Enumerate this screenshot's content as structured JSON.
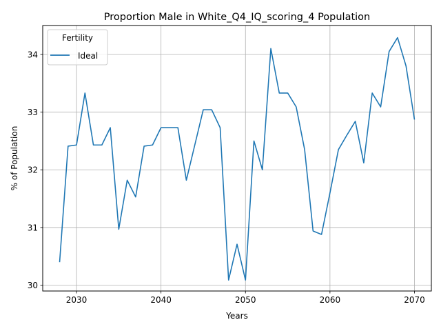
{
  "chart_data": {
    "type": "line",
    "title": "Proportion Male in White_Q4_IQ_scoring_4 Population",
    "xlabel": "Years",
    "ylabel": "% of Population",
    "xlim": [
      2026,
      2072
    ],
    "ylim": [
      29.9,
      34.5
    ],
    "xticks": [
      2030,
      2040,
      2050,
      2060,
      2070
    ],
    "yticks": [
      30,
      31,
      32,
      33,
      34
    ],
    "grid": true,
    "legend": {
      "title": "Fertility",
      "placement": "top-left"
    },
    "series": [
      {
        "name": "Ideal",
        "color": "#1f77b4",
        "x": [
          2028,
          2029,
          2030,
          2031,
          2032,
          2033,
          2034,
          2035,
          2036,
          2037,
          2038,
          2039,
          2040,
          2041,
          2042,
          2043,
          2044,
          2045,
          2046,
          2047,
          2048,
          2049,
          2050,
          2051,
          2052,
          2053,
          2054,
          2055,
          2056,
          2057,
          2058,
          2059,
          2060,
          2061,
          2062,
          2063,
          2064,
          2065,
          2066,
          2067,
          2068,
          2069,
          2070
        ],
        "y": [
          30.4,
          32.41,
          32.43,
          33.33,
          32.43,
          32.43,
          32.73,
          30.97,
          31.82,
          31.53,
          32.41,
          32.43,
          32.73,
          32.73,
          32.73,
          31.82,
          32.43,
          33.04,
          33.04,
          32.73,
          30.09,
          30.71,
          30.09,
          32.5,
          32.0,
          34.1,
          33.33,
          33.33,
          33.09,
          32.35,
          30.94,
          30.88,
          31.6,
          32.35,
          32.6,
          32.84,
          32.12,
          33.33,
          33.09,
          34.05,
          34.29,
          33.8,
          32.87
        ]
      }
    ]
  }
}
